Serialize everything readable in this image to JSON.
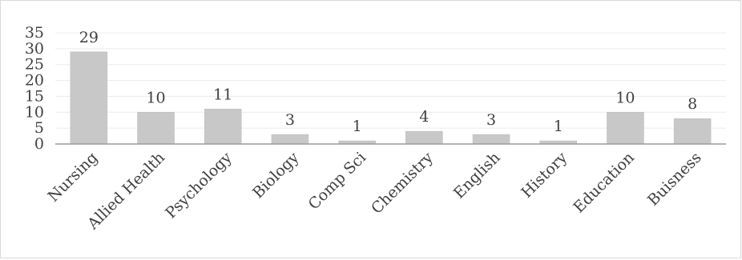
{
  "chart_data": {
    "type": "bar",
    "title": "",
    "xlabel": "",
    "ylabel": "",
    "categories": [
      "Nursing",
      "Allied Health",
      "Psychology",
      "Biology",
      "Comp Sci",
      "Chemistry",
      "English",
      "History",
      "Education",
      "Buisness"
    ],
    "values": [
      29,
      10,
      11,
      3,
      1,
      4,
      3,
      1,
      10,
      8
    ],
    "data_labels": [
      "29",
      "10",
      "11",
      "3",
      "1",
      "4",
      "3",
      "1",
      "10",
      "8"
    ],
    "ylim": [
      0,
      35
    ],
    "yticks": [
      0,
      5,
      10,
      15,
      20,
      25,
      30,
      35
    ],
    "ytick_labels": [
      "0",
      "5",
      "10",
      "15",
      "20",
      "25",
      "30",
      "35"
    ],
    "grid": true,
    "legend": "none",
    "colors": {
      "bar": "#c8c8c8",
      "grid": "#ececec",
      "axis": "#9a9a9a",
      "text": "#404040"
    }
  }
}
